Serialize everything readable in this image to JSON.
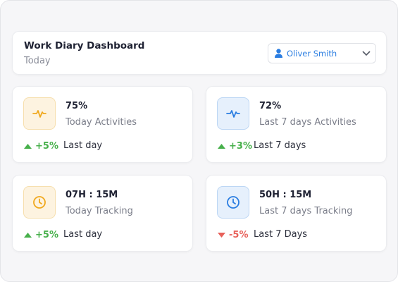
{
  "header": {
    "title": "Work Diary Dashboard",
    "subtitle": "Today"
  },
  "user": {
    "name": "Oliver Smith"
  },
  "cards": [
    {
      "value": "75%",
      "label": "Today Activities",
      "change": "+5%",
      "period": "Last day"
    },
    {
      "value": "72%",
      "label": "Last 7 days Activities",
      "change": "+3%",
      "period": "Last 7 days"
    },
    {
      "value": "07H : 15M",
      "label": "Today Tracking",
      "change": "+5%",
      "period": "Last day"
    },
    {
      "value": "50H : 15M",
      "label": "Last 7 days Tracking",
      "change": "-5%",
      "period": "Last 7 Days"
    }
  ]
}
